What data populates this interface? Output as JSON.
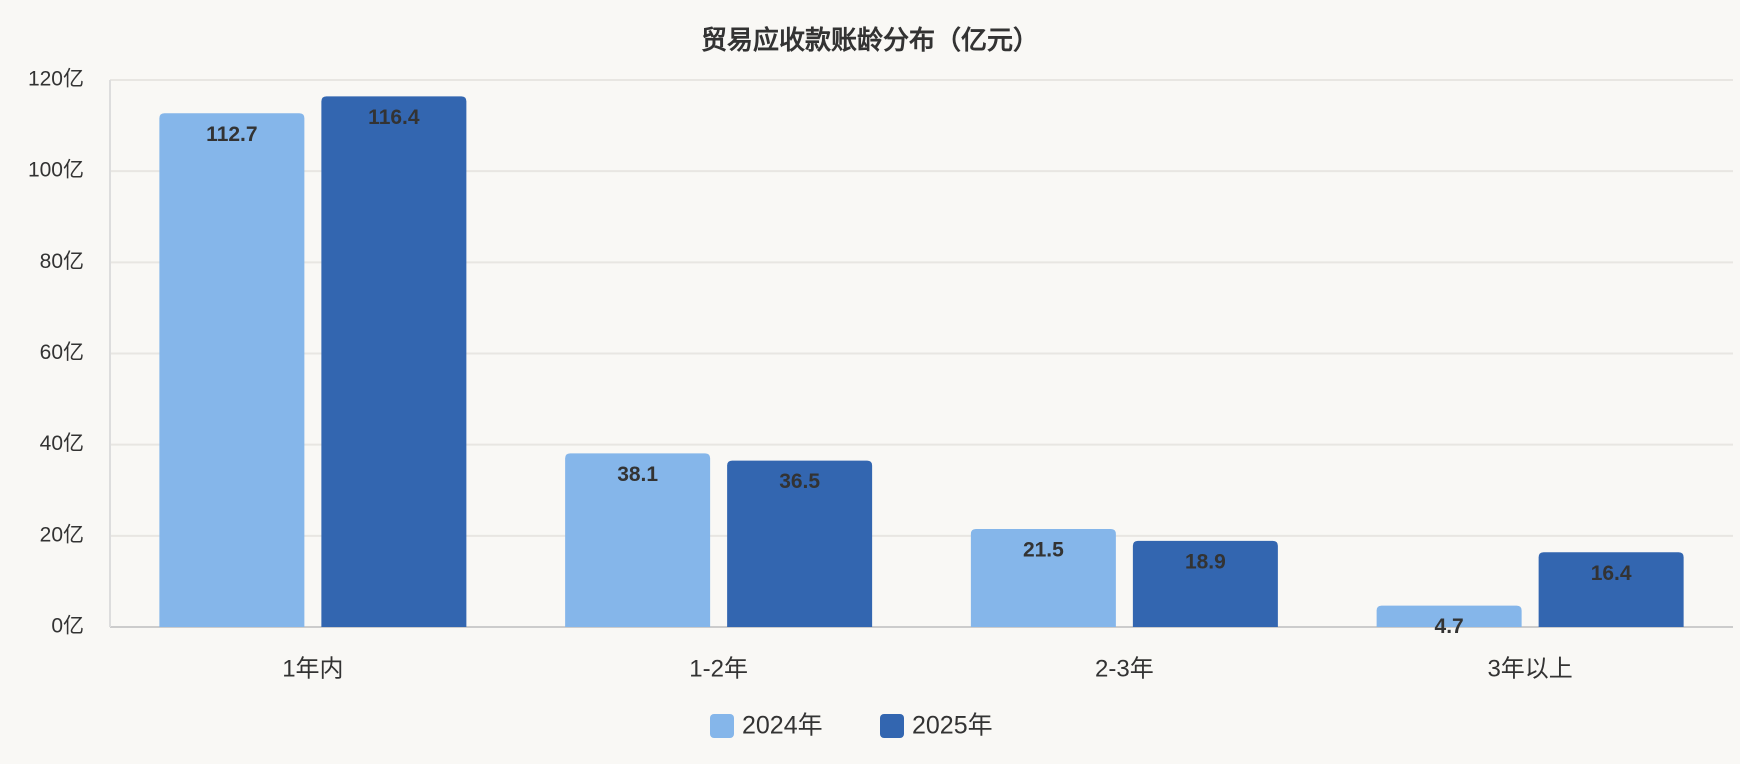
{
  "chart_data": {
    "type": "bar",
    "title": "贸易应收款账龄分布（亿元）",
    "categories": [
      "1年内",
      "1-2年",
      "2-3年",
      "3年以上"
    ],
    "series": [
      {
        "name": "2024年",
        "color": "#85b6ea",
        "label_color": "#555555",
        "values": [
          112.7,
          38.1,
          21.5,
          4.7
        ]
      },
      {
        "name": "2025年",
        "color": "#3366b0",
        "label_color": "#ffffff",
        "values": [
          116.4,
          36.5,
          18.9,
          16.4
        ]
      }
    ],
    "ylim": [
      0,
      120
    ],
    "yticks": [
      {
        "value": 0,
        "label": "0亿"
      },
      {
        "value": 20,
        "label": "20亿"
      },
      {
        "value": 40,
        "label": "40亿"
      },
      {
        "value": 60,
        "label": "60亿"
      },
      {
        "value": 80,
        "label": "80亿"
      },
      {
        "value": 100,
        "label": "100亿"
      },
      {
        "value": 120,
        "label": "120亿"
      }
    ],
    "grid": true,
    "legend": "bottom"
  }
}
